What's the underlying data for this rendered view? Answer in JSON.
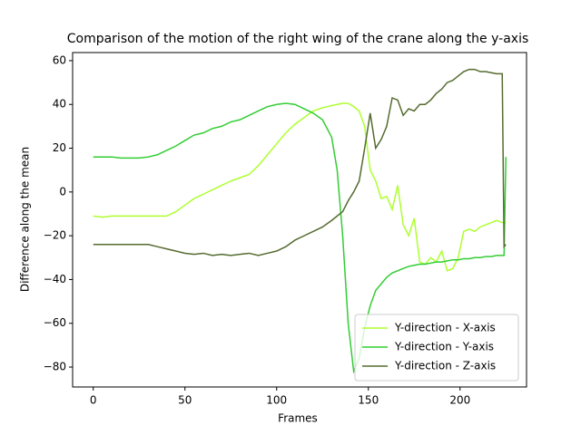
{
  "chart_data": {
    "type": "line",
    "title": "Comparison of the motion of the right wing of the crane along the y-axis",
    "x_label": "Frames",
    "y_label": "Difference along the mean",
    "x": [
      0,
      5,
      10,
      15,
      20,
      25,
      30,
      35,
      40,
      45,
      50,
      55,
      60,
      65,
      70,
      75,
      80,
      85,
      90,
      95,
      100,
      105,
      110,
      115,
      120,
      125,
      130,
      133,
      136,
      139,
      142,
      145,
      148,
      151,
      154,
      157,
      160,
      163,
      166,
      169,
      172,
      175,
      178,
      181,
      184,
      187,
      190,
      193,
      196,
      199,
      202,
      205,
      208,
      211,
      214,
      217,
      220,
      223,
      224,
      225
    ],
    "series": [
      {
        "name": "Y-direction - X-axis",
        "color": "#adff2f",
        "values": [
          -11,
          -11.5,
          -11,
          -11,
          -11,
          -11,
          -11,
          -11,
          -11,
          -9,
          -6,
          -3,
          -1,
          1,
          3,
          5,
          6.5,
          8,
          12,
          17,
          22,
          27,
          31,
          34,
          37,
          38.5,
          39.5,
          40,
          40.5,
          40.5,
          39,
          37,
          30,
          10,
          5,
          -3,
          -2,
          -8,
          3,
          -15,
          -20,
          -12,
          -32,
          -33,
          -30,
          -32,
          -27,
          -36,
          -35,
          -30,
          -18,
          -17,
          -18,
          -16,
          -15,
          -14,
          -13,
          -14,
          -14,
          -14
        ]
      },
      {
        "name": "Y-direction - Y-axis",
        "color": "#32cd32",
        "values": [
          16,
          16,
          16,
          15.5,
          15.5,
          15.5,
          16,
          17,
          19,
          21,
          23.5,
          26,
          27,
          29,
          30,
          32,
          33,
          35,
          37,
          39,
          40,
          40.5,
          40,
          38,
          36,
          33,
          25,
          10,
          -20,
          -60,
          -82,
          -76,
          -62,
          -52,
          -45,
          -42,
          -39,
          -37,
          -36,
          -35,
          -34,
          -33.5,
          -33,
          -33,
          -32.5,
          -32,
          -32,
          -31.5,
          -31,
          -31,
          -30.5,
          -30.5,
          -30,
          -30,
          -29.5,
          -29.5,
          -29,
          -29,
          -29,
          16
        ]
      },
      {
        "name": "Y-direction - Z-axis",
        "color": "#556b2f",
        "values": [
          -24,
          -24,
          -24,
          -24,
          -24,
          -24,
          -24,
          -25,
          -26,
          -27,
          -28,
          -28.5,
          -28,
          -29,
          -28.5,
          -29,
          -28.5,
          -28,
          -29,
          -28,
          -27,
          -25,
          -22,
          -20,
          -18,
          -16,
          -13,
          -11,
          -9,
          -4,
          0,
          5,
          20,
          36,
          20,
          24,
          30,
          43,
          42,
          35,
          38,
          37,
          40,
          40,
          42,
          45,
          47,
          50,
          51,
          53,
          55,
          56,
          56,
          55,
          55,
          54.5,
          54,
          54,
          -25,
          -24
        ]
      }
    ],
    "xlim": [
      -11.25,
      236.25
    ],
    "ylim": [
      -89.1,
      63.7
    ],
    "xticks": [
      0,
      50,
      100,
      150,
      200
    ],
    "yticks": [
      {
        "value": -80,
        "label": "−80"
      },
      {
        "value": -60,
        "label": "−60"
      },
      {
        "value": -40,
        "label": "−40"
      },
      {
        "value": -20,
        "label": "−20"
      },
      0,
      20,
      40,
      60
    ],
    "legend": "lower right"
  }
}
